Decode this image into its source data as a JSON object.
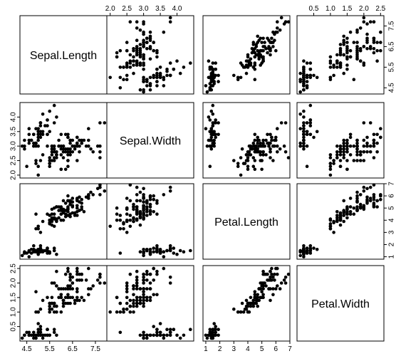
{
  "chart_data": {
    "type": "scatter",
    "variables": [
      "Sepal.Length",
      "Sepal.Width",
      "Petal.Length",
      "Petal.Width"
    ],
    "axes": {
      "Sepal.Length": {
        "range": [
          4.2,
          8.0
        ],
        "ticks": [
          4.5,
          5.5,
          6.5,
          7.5
        ],
        "tick_labels": [
          "4.5",
          "5.5",
          "6.5",
          "7.5"
        ]
      },
      "Sepal.Width": {
        "range": [
          1.9,
          4.5
        ],
        "ticks": [
          2.0,
          2.5,
          3.0,
          3.5,
          4.0
        ],
        "tick_labels": [
          "2.0",
          "2.5",
          "3.0",
          "3.5",
          "4.0"
        ]
      },
      "Petal.Length": {
        "range": [
          0.8,
          7.0
        ],
        "ticks": [
          1,
          2,
          3,
          4,
          5,
          6,
          7
        ],
        "tick_labels": [
          "1",
          "2",
          "3",
          "4",
          "5",
          "6",
          "7"
        ]
      },
      "Petal.Width": {
        "range": [
          0.0,
          2.6
        ],
        "ticks": [
          0.5,
          1.0,
          1.5,
          2.0,
          2.5
        ],
        "tick_labels": [
          "0.5",
          "1.0",
          "1.5",
          "2.0",
          "2.5"
        ]
      }
    },
    "observations": [
      [
        5.1,
        3.5,
        1.4,
        0.2
      ],
      [
        4.9,
        3.0,
        1.4,
        0.2
      ],
      [
        4.7,
        3.2,
        1.3,
        0.2
      ],
      [
        4.6,
        3.1,
        1.5,
        0.2
      ],
      [
        5.0,
        3.6,
        1.4,
        0.2
      ],
      [
        5.4,
        3.9,
        1.7,
        0.4
      ],
      [
        4.6,
        3.4,
        1.4,
        0.3
      ],
      [
        5.0,
        3.4,
        1.5,
        0.2
      ],
      [
        4.4,
        2.9,
        1.4,
        0.2
      ],
      [
        4.9,
        3.1,
        1.5,
        0.1
      ],
      [
        5.4,
        3.7,
        1.5,
        0.2
      ],
      [
        4.8,
        3.4,
        1.6,
        0.2
      ],
      [
        4.8,
        3.0,
        1.4,
        0.1
      ],
      [
        4.3,
        3.0,
        1.1,
        0.1
      ],
      [
        5.8,
        4.0,
        1.2,
        0.2
      ],
      [
        5.7,
        4.4,
        1.5,
        0.4
      ],
      [
        5.4,
        3.9,
        1.3,
        0.4
      ],
      [
        5.1,
        3.5,
        1.4,
        0.3
      ],
      [
        5.7,
        3.8,
        1.7,
        0.3
      ],
      [
        5.1,
        3.8,
        1.5,
        0.3
      ],
      [
        5.4,
        3.4,
        1.7,
        0.2
      ],
      [
        5.1,
        3.7,
        1.5,
        0.4
      ],
      [
        4.6,
        3.6,
        1.0,
        0.2
      ],
      [
        5.1,
        3.3,
        1.7,
        0.5
      ],
      [
        4.8,
        3.4,
        1.9,
        0.2
      ],
      [
        5.0,
        3.0,
        1.6,
        0.2
      ],
      [
        5.0,
        3.4,
        1.6,
        0.4
      ],
      [
        5.2,
        3.5,
        1.5,
        0.2
      ],
      [
        5.2,
        3.4,
        1.4,
        0.2
      ],
      [
        4.7,
        3.2,
        1.6,
        0.2
      ],
      [
        4.8,
        3.1,
        1.6,
        0.2
      ],
      [
        5.4,
        3.4,
        1.5,
        0.4
      ],
      [
        5.2,
        4.1,
        1.5,
        0.1
      ],
      [
        5.5,
        4.2,
        1.4,
        0.2
      ],
      [
        4.9,
        3.1,
        1.5,
        0.2
      ],
      [
        5.0,
        3.2,
        1.2,
        0.2
      ],
      [
        5.5,
        3.5,
        1.3,
        0.2
      ],
      [
        4.9,
        3.6,
        1.4,
        0.1
      ],
      [
        4.4,
        3.0,
        1.3,
        0.2
      ],
      [
        5.1,
        3.4,
        1.5,
        0.2
      ],
      [
        5.0,
        3.5,
        1.3,
        0.3
      ],
      [
        4.5,
        2.3,
        1.3,
        0.3
      ],
      [
        4.4,
        3.2,
        1.3,
        0.2
      ],
      [
        5.0,
        3.5,
        1.6,
        0.6
      ],
      [
        5.1,
        3.8,
        1.9,
        0.4
      ],
      [
        4.8,
        3.0,
        1.4,
        0.3
      ],
      [
        5.1,
        3.8,
        1.6,
        0.2
      ],
      [
        4.6,
        3.2,
        1.4,
        0.2
      ],
      [
        5.3,
        3.7,
        1.5,
        0.2
      ],
      [
        5.0,
        3.3,
        1.4,
        0.2
      ],
      [
        7.0,
        3.2,
        4.7,
        1.4
      ],
      [
        6.4,
        3.2,
        4.5,
        1.5
      ],
      [
        6.9,
        3.1,
        4.9,
        1.5
      ],
      [
        5.5,
        2.3,
        4.0,
        1.3
      ],
      [
        6.5,
        2.8,
        4.6,
        1.5
      ],
      [
        5.7,
        2.8,
        4.5,
        1.3
      ],
      [
        6.3,
        3.3,
        4.7,
        1.6
      ],
      [
        4.9,
        2.4,
        3.3,
        1.0
      ],
      [
        6.6,
        2.9,
        4.6,
        1.3
      ],
      [
        5.2,
        2.7,
        3.9,
        1.4
      ],
      [
        5.0,
        2.0,
        3.5,
        1.0
      ],
      [
        5.9,
        3.0,
        4.2,
        1.5
      ],
      [
        6.0,
        2.2,
        4.0,
        1.0
      ],
      [
        6.1,
        2.9,
        4.7,
        1.4
      ],
      [
        5.6,
        2.9,
        3.6,
        1.3
      ],
      [
        6.7,
        3.1,
        4.4,
        1.4
      ],
      [
        5.6,
        3.0,
        4.5,
        1.5
      ],
      [
        5.8,
        2.7,
        4.1,
        1.0
      ],
      [
        6.2,
        2.2,
        4.5,
        1.5
      ],
      [
        5.6,
        2.5,
        3.9,
        1.1
      ],
      [
        5.9,
        3.2,
        4.8,
        1.8
      ],
      [
        6.1,
        2.8,
        4.0,
        1.3
      ],
      [
        6.3,
        2.5,
        4.9,
        1.5
      ],
      [
        6.1,
        2.8,
        4.7,
        1.2
      ],
      [
        6.4,
        2.9,
        4.3,
        1.3
      ],
      [
        6.6,
        3.0,
        4.4,
        1.4
      ],
      [
        6.8,
        2.8,
        4.8,
        1.4
      ],
      [
        6.7,
        3.0,
        5.0,
        1.7
      ],
      [
        6.0,
        2.9,
        4.5,
        1.5
      ],
      [
        5.7,
        2.6,
        3.5,
        1.0
      ],
      [
        5.5,
        2.4,
        3.8,
        1.1
      ],
      [
        5.5,
        2.4,
        3.7,
        1.0
      ],
      [
        5.8,
        2.7,
        3.9,
        1.2
      ],
      [
        6.0,
        2.7,
        5.1,
        1.6
      ],
      [
        5.4,
        3.0,
        4.5,
        1.5
      ],
      [
        6.0,
        3.4,
        4.5,
        1.6
      ],
      [
        6.7,
        3.1,
        4.7,
        1.5
      ],
      [
        6.3,
        2.3,
        4.4,
        1.3
      ],
      [
        5.6,
        3.0,
        4.1,
        1.3
      ],
      [
        5.5,
        2.5,
        4.0,
        1.3
      ],
      [
        5.5,
        2.6,
        4.4,
        1.2
      ],
      [
        6.1,
        3.0,
        4.6,
        1.4
      ],
      [
        5.8,
        2.6,
        4.0,
        1.2
      ],
      [
        5.0,
        2.3,
        3.3,
        1.0
      ],
      [
        5.6,
        2.7,
        4.2,
        1.3
      ],
      [
        5.7,
        3.0,
        4.2,
        1.2
      ],
      [
        5.7,
        2.9,
        4.2,
        1.3
      ],
      [
        6.2,
        2.9,
        4.3,
        1.3
      ],
      [
        5.1,
        2.5,
        3.0,
        1.1
      ],
      [
        5.7,
        2.8,
        4.1,
        1.3
      ],
      [
        6.3,
        3.3,
        6.0,
        2.5
      ],
      [
        5.8,
        2.7,
        5.1,
        1.9
      ],
      [
        7.1,
        3.0,
        5.9,
        2.1
      ],
      [
        6.3,
        2.9,
        5.6,
        1.8
      ],
      [
        6.5,
        3.0,
        5.8,
        2.2
      ],
      [
        7.6,
        3.0,
        6.6,
        2.1
      ],
      [
        4.9,
        2.5,
        4.5,
        1.7
      ],
      [
        7.3,
        2.9,
        6.3,
        1.8
      ],
      [
        6.7,
        2.5,
        5.8,
        1.8
      ],
      [
        7.2,
        3.6,
        6.1,
        2.5
      ],
      [
        6.5,
        3.2,
        5.1,
        2.0
      ],
      [
        6.4,
        2.7,
        5.3,
        1.9
      ],
      [
        6.8,
        3.0,
        5.5,
        2.1
      ],
      [
        5.7,
        2.5,
        5.0,
        2.0
      ],
      [
        5.8,
        2.8,
        5.1,
        2.4
      ],
      [
        6.4,
        3.2,
        5.3,
        2.3
      ],
      [
        6.5,
        3.0,
        5.5,
        1.8
      ],
      [
        7.7,
        3.8,
        6.7,
        2.2
      ],
      [
        7.7,
        2.6,
        6.9,
        2.3
      ],
      [
        6.0,
        2.2,
        5.0,
        1.5
      ],
      [
        6.9,
        3.2,
        5.7,
        2.3
      ],
      [
        5.6,
        2.8,
        4.9,
        2.0
      ],
      [
        7.7,
        2.8,
        6.7,
        2.0
      ],
      [
        6.3,
        2.7,
        4.9,
        1.8
      ],
      [
        6.7,
        3.3,
        5.7,
        2.1
      ],
      [
        7.2,
        3.2,
        6.0,
        1.8
      ],
      [
        6.2,
        2.8,
        4.8,
        1.8
      ],
      [
        6.1,
        3.0,
        4.9,
        1.8
      ],
      [
        6.4,
        2.8,
        5.6,
        2.1
      ],
      [
        7.2,
        3.0,
        5.8,
        1.6
      ],
      [
        7.4,
        2.8,
        6.1,
        1.9
      ],
      [
        7.9,
        3.8,
        6.4,
        2.0
      ],
      [
        6.4,
        2.8,
        5.6,
        2.2
      ],
      [
        6.3,
        2.8,
        5.1,
        1.5
      ],
      [
        6.1,
        2.6,
        5.6,
        1.4
      ],
      [
        7.7,
        3.0,
        6.1,
        2.3
      ],
      [
        6.3,
        3.4,
        5.6,
        2.4
      ],
      [
        6.4,
        3.1,
        5.5,
        1.8
      ],
      [
        6.0,
        3.0,
        4.8,
        1.8
      ],
      [
        6.9,
        3.1,
        5.4,
        2.1
      ],
      [
        6.7,
        3.1,
        5.6,
        2.4
      ],
      [
        6.9,
        3.1,
        5.1,
        2.3
      ],
      [
        5.8,
        2.7,
        5.1,
        1.9
      ],
      [
        6.8,
        3.2,
        5.9,
        2.3
      ],
      [
        6.7,
        3.3,
        5.7,
        2.5
      ],
      [
        6.7,
        3.0,
        5.2,
        2.3
      ],
      [
        6.3,
        2.5,
        5.0,
        1.9
      ],
      [
        6.5,
        3.0,
        5.2,
        2.0
      ],
      [
        6.2,
        3.4,
        5.4,
        2.3
      ],
      [
        5.9,
        3.0,
        5.1,
        1.8
      ]
    ],
    "grid": false,
    "legend": "none",
    "point_color": "#000000"
  }
}
